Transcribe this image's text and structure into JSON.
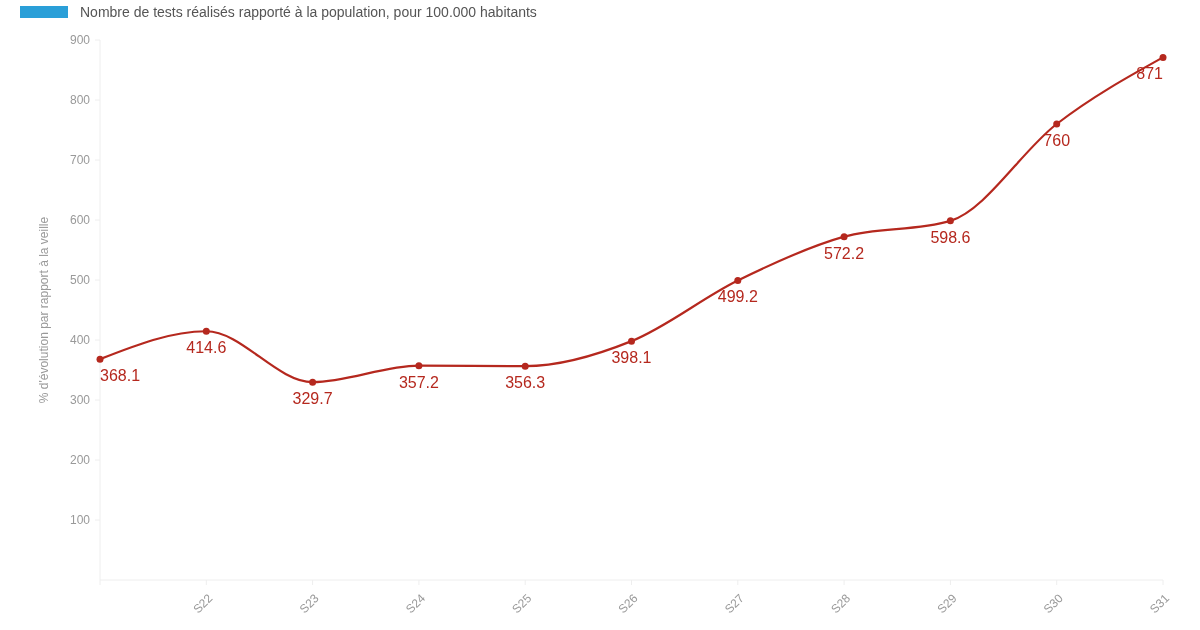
{
  "chart_data": {
    "type": "line",
    "title": "Nombre de tests réalisés rapporté à la population, pour 100.000 habitants",
    "ylabel": "% d'évolution par rapport à la veille",
    "categories": [
      null,
      "S22",
      "S23",
      "S24",
      "S25",
      "S26",
      "S27",
      "S28",
      "S29",
      "S30",
      "S31"
    ],
    "series": [
      {
        "color": "#b5281e",
        "values": [
          368.1,
          414.6,
          329.7,
          357.2,
          356.3,
          398.1,
          499.2,
          572.2,
          598.6,
          760,
          871
        ]
      }
    ],
    "ylim": [
      0,
      900
    ],
    "yticks": [
      100,
      200,
      300,
      400,
      500,
      600,
      700,
      800,
      900
    ],
    "data_labels": true,
    "marker": "circle",
    "grid": false,
    "line_style": "solid"
  }
}
